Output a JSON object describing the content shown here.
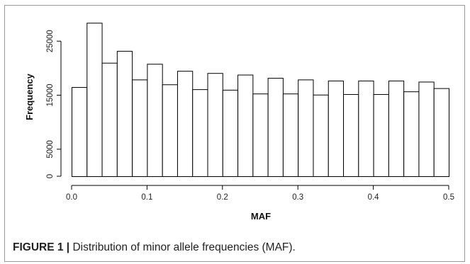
{
  "chart_data": {
    "type": "bar",
    "title": "",
    "xlabel": "MAF",
    "ylabel": "Frequency",
    "xlim": [
      0,
      0.5
    ],
    "ylim": [
      0,
      30000
    ],
    "bin_width": 0.02,
    "bins": [
      {
        "x0": 0.0,
        "x1": 0.02,
        "value": 16500
      },
      {
        "x0": 0.02,
        "x1": 0.04,
        "value": 28400
      },
      {
        "x0": 0.04,
        "x1": 0.06,
        "value": 21000
      },
      {
        "x0": 0.06,
        "x1": 0.08,
        "value": 23200
      },
      {
        "x0": 0.08,
        "x1": 0.1,
        "value": 17900
      },
      {
        "x0": 0.1,
        "x1": 0.12,
        "value": 20800
      },
      {
        "x0": 0.12,
        "x1": 0.14,
        "value": 17000
      },
      {
        "x0": 0.14,
        "x1": 0.16,
        "value": 19500
      },
      {
        "x0": 0.16,
        "x1": 0.18,
        "value": 16100
      },
      {
        "x0": 0.18,
        "x1": 0.2,
        "value": 19100
      },
      {
        "x0": 0.2,
        "x1": 0.22,
        "value": 16000
      },
      {
        "x0": 0.22,
        "x1": 0.24,
        "value": 18800
      },
      {
        "x0": 0.24,
        "x1": 0.26,
        "value": 15300
      },
      {
        "x0": 0.26,
        "x1": 0.28,
        "value": 18200
      },
      {
        "x0": 0.28,
        "x1": 0.3,
        "value": 15300
      },
      {
        "x0": 0.3,
        "x1": 0.32,
        "value": 17900
      },
      {
        "x0": 0.32,
        "x1": 0.34,
        "value": 15100
      },
      {
        "x0": 0.34,
        "x1": 0.36,
        "value": 17700
      },
      {
        "x0": 0.36,
        "x1": 0.38,
        "value": 15200
      },
      {
        "x0": 0.38,
        "x1": 0.4,
        "value": 17700
      },
      {
        "x0": 0.4,
        "x1": 0.42,
        "value": 15200
      },
      {
        "x0": 0.42,
        "x1": 0.44,
        "value": 17700
      },
      {
        "x0": 0.44,
        "x1": 0.46,
        "value": 15700
      },
      {
        "x0": 0.46,
        "x1": 0.48,
        "value": 17500
      },
      {
        "x0": 0.48,
        "x1": 0.5,
        "value": 16300
      }
    ],
    "x_ticks": [
      0.0,
      0.1,
      0.2,
      0.3,
      0.4,
      0.5
    ],
    "x_tick_labels": [
      "0.0",
      "0.1",
      "0.2",
      "0.3",
      "0.4",
      "0.5"
    ],
    "y_ticks": [
      0,
      5000,
      15000,
      25000
    ],
    "y_tick_labels": [
      "0",
      "5000",
      "15000",
      "25000"
    ],
    "grid": false,
    "bar_fill": "#ffffff",
    "bar_stroke": "#000000"
  },
  "caption": {
    "label": "FIGURE 1 |",
    "text": " Distribution of minor allele frequencies (MAF)."
  }
}
